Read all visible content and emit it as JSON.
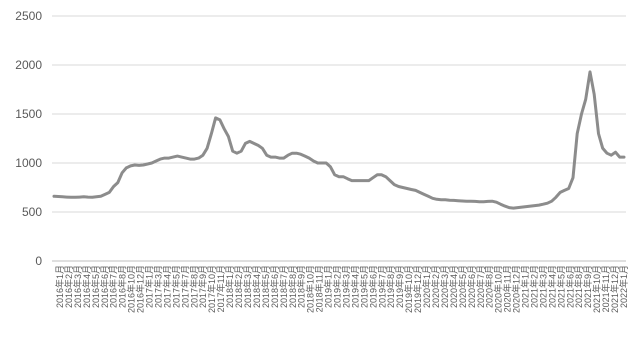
{
  "chart_data": {
    "type": "line",
    "title": "",
    "xlabel": "",
    "ylabel": "",
    "ylim": [
      0,
      2500
    ],
    "yticks": [
      0,
      500,
      1000,
      1500,
      2000,
      2500
    ],
    "grid": "horizontal",
    "legend": "none",
    "line_color": "#8c8c8c",
    "x_tick_labels": [
      "2016年1月",
      "2016年2月",
      "2016年3月",
      "2016年4月",
      "2016年5月",
      "2016年6月",
      "2016年7月",
      "2016年8月",
      "2016年10月",
      "2016年12月",
      "2017年1月",
      "2017年3月",
      "2017年4月",
      "2017年5月",
      "2017年7月",
      "2017年8月",
      "2017年9月",
      "2017年10月",
      "2017年11月",
      "2018年1月",
      "2018年2月",
      "2018年3月",
      "2018年4月",
      "2018年5月",
      "2018年6月",
      "2018年7月",
      "2018年8月",
      "2018年9月",
      "2018年10月",
      "2018年11月",
      "2019年1月",
      "2019年2月",
      "2019年3月",
      "2019年4月",
      "2019年5月",
      "2019年6月",
      "2019年7月",
      "2019年8月",
      "2019年9月",
      "2019年10月",
      "2019年12月",
      "2020年1月",
      "2020年2月",
      "2020年3月",
      "2020年4月",
      "2020年5月",
      "2020年6月",
      "2020年7月",
      "2020年8月",
      "2020年10月",
      "2020年11月",
      "2020年12月",
      "2021年1月",
      "2021年2月",
      "2021年3月",
      "2021年4月",
      "2021年5月",
      "2021年6月",
      "2021年8月",
      "2021年9月",
      "2021年10月",
      "2021年11月",
      "2021年12月",
      "2022年1月"
    ],
    "series": [
      {
        "values": [
          660,
          658,
          655,
          652,
          650,
          650,
          652,
          655,
          652,
          650,
          655,
          660,
          680,
          700,
          760,
          800,
          900,
          950,
          970,
          980,
          975,
          980,
          990,
          1000,
          1020,
          1040,
          1050,
          1050,
          1060,
          1070,
          1060,
          1050,
          1040,
          1040,
          1050,
          1080,
          1150,
          1300,
          1460,
          1440,
          1350,
          1270,
          1120,
          1100,
          1120,
          1200,
          1220,
          1200,
          1180,
          1150,
          1080,
          1060,
          1060,
          1050,
          1050,
          1080,
          1100,
          1100,
          1090,
          1070,
          1050,
          1020,
          1000,
          1000,
          1000,
          960,
          880,
          860,
          860,
          840,
          820,
          820,
          820,
          820,
          820,
          850,
          880,
          880,
          860,
          820,
          780,
          760,
          750,
          740,
          730,
          720,
          700,
          680,
          660,
          640,
          630,
          625,
          625,
          620,
          618,
          615,
          612,
          610,
          610,
          608,
          605,
          605,
          608,
          610,
          600,
          580,
          560,
          545,
          540,
          545,
          550,
          555,
          560,
          565,
          570,
          580,
          590,
          610,
          650,
          700,
          720,
          740,
          850,
          1300,
          1500,
          1650,
          1930,
          1700,
          1300,
          1150,
          1100,
          1080,
          1110,
          1060,
          1060
        ]
      }
    ]
  }
}
